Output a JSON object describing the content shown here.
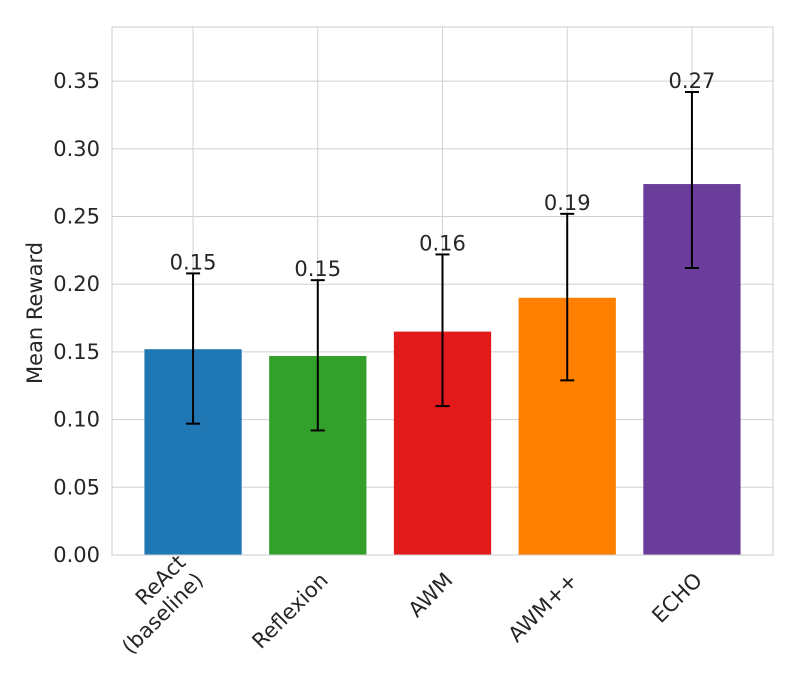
{
  "chart_data": {
    "type": "bar",
    "title": "",
    "xlabel": "",
    "ylabel": "Mean Reward",
    "ylim": [
      0,
      0.39
    ],
    "yticks": [
      "0.00",
      "0.05",
      "0.10",
      "0.15",
      "0.20",
      "0.25",
      "0.30",
      "0.35"
    ],
    "grid": true,
    "categories": [
      [
        "ReAct",
        "(baseline)"
      ],
      [
        "Reflexion"
      ],
      [
        "AWM"
      ],
      [
        "AWM++"
      ],
      [
        "ECHO"
      ]
    ],
    "values": [
      0.152,
      0.147,
      0.165,
      0.19,
      0.274
    ],
    "error_low": [
      0.097,
      0.092,
      0.11,
      0.129,
      0.212
    ],
    "error_high": [
      0.208,
      0.203,
      0.222,
      0.252,
      0.342
    ],
    "value_labels": [
      "0.15",
      "0.15",
      "0.16",
      "0.19",
      "0.27"
    ],
    "colors": [
      "#1f77b4",
      "#33a02c",
      "#e31a1c",
      "#ff7f00",
      "#6a3d9a"
    ]
  }
}
